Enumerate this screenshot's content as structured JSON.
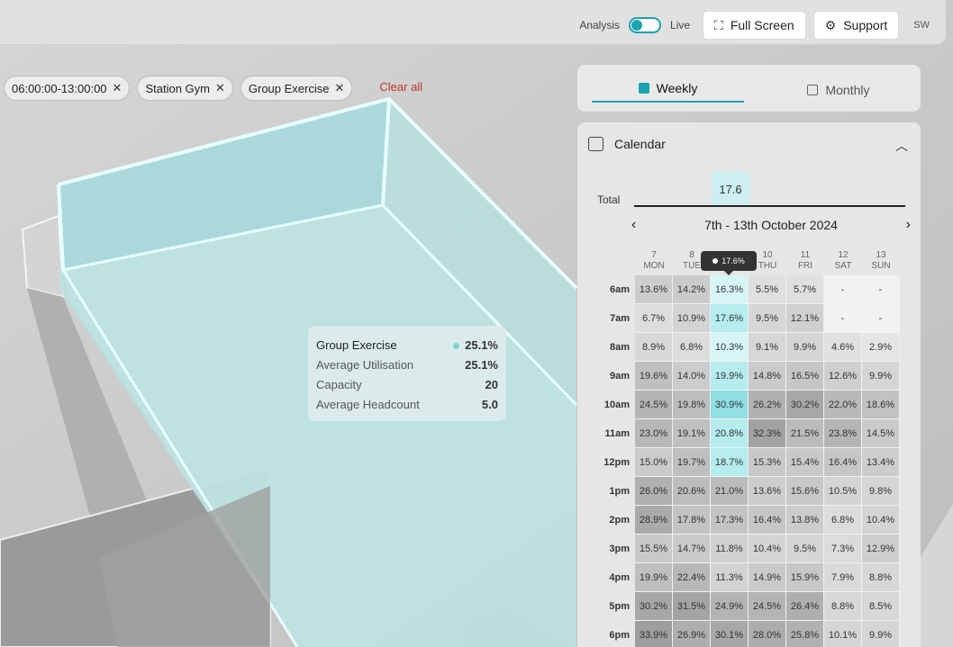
{
  "header": {
    "analysis_label": "Analysis",
    "live_label": "Live",
    "fullscreen_label": "Full Screen",
    "support_label": "Support",
    "user_initials": "SW"
  },
  "filters": {
    "chips": [
      "06:00:00-13:00:00",
      "Station Gym",
      "Group Exercise"
    ],
    "clear_label": "Clear all"
  },
  "room_tooltip": {
    "rows": [
      {
        "label": "Group Exercise",
        "value": "25.1%"
      },
      {
        "label": "Average Utilisation",
        "value": "25.1%"
      },
      {
        "label": "Capacity",
        "value": "20"
      },
      {
        "label": "Average Headcount",
        "value": "5.0"
      }
    ]
  },
  "tabs": {
    "weekly": "Weekly",
    "monthly": "Monthly"
  },
  "calendar": {
    "title": "Calendar",
    "total_label": "Total",
    "total_value": "17.6",
    "week_range": "7th - 13th October 2024",
    "hover_value": "17.6%",
    "days": [
      {
        "num": "7",
        "name": "MON"
      },
      {
        "num": "8",
        "name": "TUE"
      },
      {
        "num": "9",
        "name": "WED"
      },
      {
        "num": "10",
        "name": "THU"
      },
      {
        "num": "11",
        "name": "FRI"
      },
      {
        "num": "12",
        "name": "SAT"
      },
      {
        "num": "13",
        "name": "SUN"
      }
    ],
    "rows": [
      {
        "time": "6am",
        "values": [
          "13.6%",
          "14.2%",
          "16.3%",
          "5.5%",
          "5.7%",
          "-",
          "-"
        ]
      },
      {
        "time": "7am",
        "values": [
          "6.7%",
          "10.9%",
          "17.6%",
          "9.5%",
          "12.1%",
          "-",
          "-"
        ]
      },
      {
        "time": "8am",
        "values": [
          "8.9%",
          "6.8%",
          "10.3%",
          "9.1%",
          "9.9%",
          "4.6%",
          "2.9%"
        ]
      },
      {
        "time": "9am",
        "values": [
          "19.6%",
          "14.0%",
          "19.9%",
          "14.8%",
          "16.5%",
          "12.6%",
          "9.9%"
        ]
      },
      {
        "time": "10am",
        "values": [
          "24.5%",
          "19.8%",
          "30.9%",
          "26.2%",
          "30.2%",
          "22.0%",
          "18.6%"
        ]
      },
      {
        "time": "11am",
        "values": [
          "23.0%",
          "19.1%",
          "20.8%",
          "32.3%",
          "21.5%",
          "23.8%",
          "14.5%"
        ]
      },
      {
        "time": "12pm",
        "values": [
          "15.0%",
          "19.7%",
          "18.7%",
          "15.3%",
          "15.4%",
          "16.4%",
          "13.4%"
        ]
      },
      {
        "time": "1pm",
        "values": [
          "26.0%",
          "20.6%",
          "21.0%",
          "13.6%",
          "15.6%",
          "10.5%",
          "9.8%"
        ]
      },
      {
        "time": "2pm",
        "values": [
          "28.9%",
          "17.8%",
          "17.3%",
          "16.4%",
          "13.8%",
          "6.8%",
          "10.4%"
        ]
      },
      {
        "time": "3pm",
        "values": [
          "15.5%",
          "14.7%",
          "11.8%",
          "10.4%",
          "9.5%",
          "7.3%",
          "12.9%"
        ]
      },
      {
        "time": "4pm",
        "values": [
          "19.9%",
          "22.4%",
          "11.3%",
          "14.9%",
          "15.9%",
          "7.9%",
          "8.8%"
        ]
      },
      {
        "time": "5pm",
        "values": [
          "30.2%",
          "31.5%",
          "24.9%",
          "24.5%",
          "26.4%",
          "8.8%",
          "8.5%"
        ]
      },
      {
        "time": "6pm",
        "values": [
          "33.9%",
          "26.9%",
          "30.1%",
          "28.0%",
          "25.8%",
          "10.1%",
          "9.9%"
        ]
      }
    ],
    "highlight_column": 2
  },
  "colors": {
    "accent": "#1aa3b0",
    "room_glow": "#bde9eb"
  }
}
